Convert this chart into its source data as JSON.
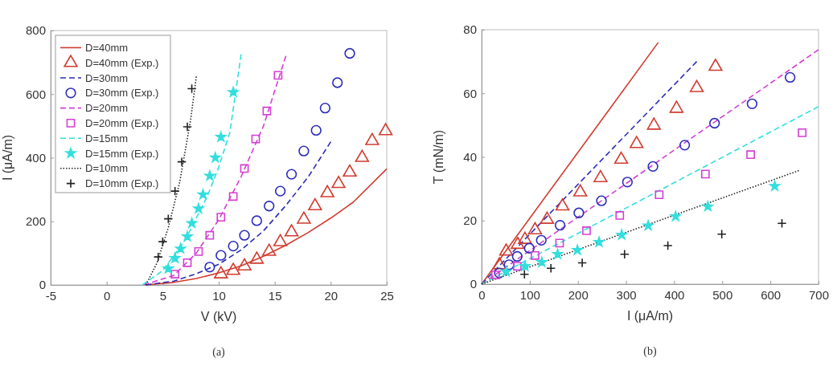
{
  "chart_data": [
    {
      "type": "line",
      "xlabel": "V (kV)",
      "ylabel": "I (μA/m)",
      "annotations": [
        "(a)"
      ],
      "xlim": [
        -5,
        25
      ],
      "xticks": [
        -5,
        0,
        5,
        10,
        15,
        20,
        25
      ],
      "ylim": [
        0,
        800
      ],
      "yticks": [
        0,
        200,
        400,
        600,
        800
      ],
      "legend": "top left",
      "series": [
        {
          "name": "D=40mm",
          "type": "line",
          "color": "#d13b2f",
          "line_style": "solid",
          "marker": "none",
          "x": [
            3.5,
            6,
            8,
            10,
            12,
            14,
            16,
            18,
            20,
            22,
            25
          ],
          "values": [
            0,
            8,
            20,
            38,
            60,
            90,
            125,
            165,
            210,
            260,
            365
          ]
        },
        {
          "name": "D=40mm (Exp.)",
          "type": "scatter",
          "color": "#d13b2f",
          "marker": "triangle",
          "x": [
            10.2,
            11.3,
            12.3,
            13.4,
            14.5,
            15.5,
            16.5,
            17.6,
            18.6,
            19.7,
            20.7,
            21.7,
            22.8,
            23.7,
            24.9
          ],
          "values": [
            34,
            45,
            59,
            80,
            105,
            135,
            166,
            206,
            248,
            289,
            318,
            354,
            400,
            453,
            484
          ]
        },
        {
          "name": "D=30mm",
          "type": "line",
          "color": "#2b2db8",
          "line_style": "dashed",
          "marker": "none",
          "x": [
            3.5,
            6,
            8,
            10,
            12,
            14,
            16,
            18,
            20
          ],
          "values": [
            0,
            12,
            35,
            65,
            110,
            170,
            250,
            340,
            450
          ]
        },
        {
          "name": "D=30mm (Exp.)",
          "type": "scatter",
          "color": "#2b2db8",
          "marker": "circle",
          "x": [
            9.2,
            10.2,
            11.3,
            12.3,
            13.4,
            14.5,
            15.5,
            16.5,
            17.6,
            18.7,
            19.5,
            20.6,
            21.7
          ],
          "values": [
            56,
            93,
            122,
            156,
            202,
            248,
            295,
            348,
            421,
            486,
            556,
            636,
            728
          ]
        },
        {
          "name": "D=20mm",
          "type": "line",
          "color": "#d43fd4",
          "line_style": "dashed",
          "marker": "none",
          "x": [
            3.3,
            6,
            8,
            10,
            12,
            14,
            16
          ],
          "values": [
            0,
            30,
            100,
            205,
            340,
            500,
            720
          ]
        },
        {
          "name": "D=20mm (Exp.)",
          "type": "scatter",
          "color": "#d43fd4",
          "marker": "square",
          "x": [
            6.1,
            7.2,
            8.2,
            9.2,
            10.2,
            11.3,
            12.3,
            13.3,
            14.3,
            15.3
          ],
          "values": [
            34,
            70,
            105,
            156,
            213,
            278,
            366,
            459,
            547,
            659
          ]
        },
        {
          "name": "D=15mm",
          "type": "line",
          "color": "#33dede",
          "line_style": "dashed",
          "marker": "none",
          "x": [
            3.2,
            5,
            7,
            9,
            10,
            11,
            12
          ],
          "values": [
            0,
            45,
            140,
            280,
            370,
            480,
            725
          ]
        },
        {
          "name": "D=15mm (Exp.)",
          "type": "scatter",
          "color": "#33dede",
          "marker": "star",
          "x": [
            5.5,
            6.1,
            6.6,
            7.2,
            7.6,
            8.2,
            8.6,
            9.2,
            9.7,
            10.2,
            11.3
          ],
          "values": [
            51,
            84,
            114,
            152,
            194,
            240,
            284,
            343,
            400,
            465,
            606
          ]
        },
        {
          "name": "D=10mm",
          "type": "line",
          "color": "#222222",
          "line_style": "dotted",
          "marker": "none",
          "x": [
            3.5,
            4.5,
            5.5,
            6.5,
            7.5,
            8
          ],
          "values": [
            0,
            70,
            180,
            320,
            520,
            655
          ]
        },
        {
          "name": "D=10mm (Exp.)",
          "type": "scatter",
          "color": "#222222",
          "marker": "cross",
          "x": [
            4.6,
            5.0,
            5.5,
            6.1,
            6.7,
            7.2,
            7.6
          ],
          "values": [
            88,
            136,
            208,
            295,
            387,
            497,
            617
          ]
        }
      ]
    },
    {
      "type": "line",
      "xlabel": "I (μA/m)",
      "ylabel": "T (mN/m)",
      "annotations": [
        "(b)"
      ],
      "xlim": [
        0,
        700
      ],
      "xticks": [
        0,
        100,
        200,
        300,
        400,
        500,
        600,
        700
      ],
      "ylim": [
        0,
        80
      ],
      "yticks": [
        0,
        20,
        40,
        60,
        80
      ],
      "series": [
        {
          "type": "line",
          "color": "#d13b2f",
          "line_style": "solid",
          "marker": "none",
          "x": [
            0,
            367
          ],
          "values": [
            0,
            76
          ]
        },
        {
          "type": "scatter",
          "color": "#d13b2f",
          "marker": "triangle",
          "x": [
            37,
            51,
            75,
            90,
            111,
            136,
            168,
            205,
            247,
            290,
            322,
            358,
            405,
            447,
            486
          ],
          "values": [
            6,
            10.3,
            12.4,
            14.0,
            17.0,
            20.3,
            24.5,
            28.9,
            33.4,
            39.2,
            44.1,
            49.9,
            55.2,
            61.7,
            68.4
          ]
        },
        {
          "type": "line",
          "color": "#2b2db8",
          "line_style": "dashed",
          "marker": "none",
          "x": [
            0,
            447
          ],
          "values": [
            0,
            70
          ]
        },
        {
          "type": "scatter",
          "color": "#2b2db8",
          "marker": "circle",
          "x": [
            37,
            57,
            74,
            99,
            124,
            163,
            202,
            249,
            303,
            356,
            422,
            484,
            562,
            641
          ],
          "values": [
            3.5,
            6.1,
            8.7,
            11.3,
            13.8,
            18.5,
            22.4,
            26.2,
            32.1,
            37.0,
            43.7,
            50.6,
            56.7,
            65.0
          ]
        },
        {
          "type": "line",
          "color": "#d43fd4",
          "line_style": "dashed",
          "marker": "none",
          "x": [
            0,
            700
          ],
          "values": [
            0,
            73.7
          ]
        },
        {
          "type": "scatter",
          "color": "#d43fd4",
          "marker": "square",
          "x": [
            29,
            74,
            111,
            162,
            218,
            287,
            369,
            465,
            559,
            666
          ],
          "values": [
            2.9,
            5.6,
            9.0,
            12.9,
            16.8,
            21.6,
            28.1,
            34.6,
            40.7,
            47.6
          ]
        },
        {
          "type": "line",
          "color": "#33dede",
          "line_style": "dashed",
          "marker": "none",
          "x": [
            0,
            700
          ],
          "values": [
            0,
            55.8
          ]
        },
        {
          "type": "scatter",
          "color": "#33dede",
          "marker": "star",
          "x": [
            51,
            90,
            125,
            158,
            199,
            244,
            291,
            346,
            403,
            470,
            609
          ],
          "values": [
            3.9,
            5.6,
            6.9,
            9.4,
            10.7,
            13.2,
            15.5,
            18.4,
            21.3,
            24.4,
            30.8
          ]
        },
        {
          "type": "line",
          "color": "#222222",
          "line_style": "dotted",
          "marker": "none",
          "x": [
            0,
            659
          ],
          "values": [
            0,
            35.7
          ]
        },
        {
          "type": "scatter",
          "color": "#222222",
          "marker": "cross",
          "x": [
            89,
            144,
            209,
            297,
            387,
            499,
            624
          ],
          "values": [
            3.1,
            5.0,
            6.7,
            9.4,
            12.1,
            15.7,
            19.1
          ]
        }
      ]
    }
  ]
}
